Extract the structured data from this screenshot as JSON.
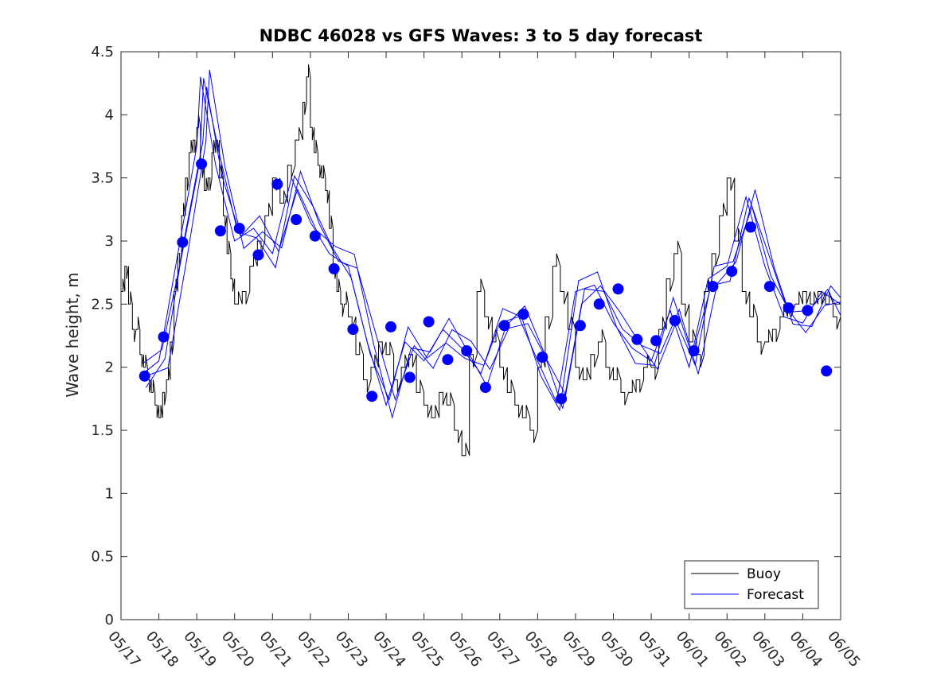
{
  "chart_data": {
    "type": "line",
    "title": "NDBC 46028 vs GFS Waves: 3 to 5 day forecast",
    "xlabel": "",
    "ylabel": "Wave height, m",
    "xlim": [
      "05/17",
      "06/05"
    ],
    "ylim": [
      0,
      4.5
    ],
    "grid": false,
    "legend_position": "bottom-right",
    "x_tick_labels": [
      "05/17",
      "05/18",
      "05/19",
      "05/20",
      "05/21",
      "05/22",
      "05/23",
      "05/24",
      "05/25",
      "05/26",
      "05/27",
      "05/28",
      "05/29",
      "05/30",
      "05/31",
      "06/01",
      "06/02",
      "06/03",
      "06/04",
      "06/05"
    ],
    "y_ticks": [
      0,
      0.5,
      1,
      1.5,
      2,
      2.5,
      3,
      3.5,
      4,
      4.5
    ],
    "y_tick_labels": [
      "0",
      "0.5",
      "1",
      "1.5",
      "2",
      "2.5",
      "3",
      "3.5",
      "4",
      "4.5"
    ],
    "colors": {
      "buoy": "#000000",
      "forecast": "#0000ff",
      "markers": "#0000ff"
    },
    "series": [
      {
        "name": "Buoy",
        "days": [
          0,
          0.1,
          0.2,
          0.3,
          0.4,
          0.5,
          0.6,
          0.7,
          0.8,
          0.9,
          1.0,
          1.1,
          1.2,
          1.3,
          1.4,
          1.5,
          1.6,
          1.7,
          1.8,
          1.9,
          2.0,
          2.1,
          2.2,
          2.3,
          2.4,
          2.5,
          2.6,
          2.7,
          2.8,
          2.9,
          3.0,
          3.2,
          3.4,
          3.6,
          3.8,
          4.0,
          4.2,
          4.4,
          4.6,
          4.8,
          4.9,
          5.0,
          5.1,
          5.2,
          5.3,
          5.4,
          5.5,
          5.6,
          5.7,
          5.8,
          5.9,
          6.0,
          6.2,
          6.4,
          6.6,
          6.8,
          7.0,
          7.2,
          7.4,
          7.6,
          7.8,
          8.0,
          8.2,
          8.4,
          8.6,
          8.8,
          9.0,
          9.2,
          9.4,
          9.6,
          9.8,
          10.0,
          10.2,
          10.4,
          10.6,
          10.8,
          11.0,
          11.2,
          11.4,
          11.6,
          11.8,
          12.0,
          12.2,
          12.4,
          12.6,
          12.8,
          13.0,
          13.2,
          13.4,
          13.6,
          13.8,
          14.0,
          14.2,
          14.4,
          14.6,
          14.8,
          15.0,
          15.2,
          15.4,
          15.6,
          15.8,
          16.0,
          16.2,
          16.4,
          16.6,
          16.8,
          17.0,
          17.2,
          17.4,
          17.6,
          17.8,
          18.0,
          18.2,
          18.4,
          18.6,
          18.8,
          19.0
        ],
        "values": [
          2.6,
          2.8,
          2.5,
          2.3,
          2.3,
          2.1,
          2.0,
          1.9,
          1.8,
          1.7,
          1.6,
          1.8,
          1.9,
          2.2,
          2.6,
          2.9,
          3.2,
          3.5,
          3.7,
          3.8,
          3.9,
          3.6,
          3.4,
          3.5,
          3.7,
          3.8,
          3.5,
          3.2,
          2.9,
          2.7,
          2.5,
          2.6,
          2.8,
          3.0,
          3.2,
          3.5,
          3.3,
          3.6,
          3.8,
          4.1,
          4.3,
          3.9,
          3.7,
          3.6,
          3.5,
          3.4,
          3.1,
          2.8,
          2.6,
          2.5,
          2.5,
          2.4,
          2.1,
          1.9,
          2.0,
          2.2,
          2.1,
          1.9,
          2.0,
          2.1,
          1.8,
          1.7,
          1.6,
          1.8,
          1.7,
          1.5,
          1.3,
          2.1,
          2.6,
          2.4,
          2.2,
          2.0,
          1.8,
          1.7,
          1.6,
          1.5,
          2.0,
          2.4,
          2.8,
          2.6,
          2.3,
          2.0,
          1.9,
          2.1,
          2.2,
          2.0,
          1.9,
          1.8,
          1.8,
          1.9,
          2.0,
          2.0,
          2.3,
          2.7,
          2.9,
          2.5,
          2.2,
          2.1,
          2.6,
          2.9,
          3.2,
          3.5,
          3.0,
          2.6,
          2.4,
          2.2,
          2.2,
          2.3,
          2.4,
          2.5,
          2.5,
          2.6,
          2.5,
          2.6,
          2.5,
          2.4,
          2.3
        ]
      },
      {
        "name": "Forecast",
        "days": [
          0.5,
          1.0,
          1.5,
          2.0,
          2.1,
          2.5,
          3.0,
          3.5,
          4.0,
          4.5,
          5.0,
          5.5,
          6.0,
          6.5,
          7.0,
          7.5,
          8.0,
          8.5,
          9.0,
          9.5,
          10.0,
          10.5,
          11.0,
          11.5,
          12.0,
          12.5,
          13.0,
          13.5,
          14.0,
          14.5,
          15.0,
          15.5,
          16.0,
          16.5,
          17.0,
          17.5,
          18.0,
          18.5,
          19.0
        ],
        "values": [
          1.93,
          2.05,
          2.9,
          3.75,
          4.3,
          3.6,
          3.0,
          3.1,
          2.9,
          3.5,
          3.15,
          2.9,
          2.8,
          2.2,
          1.7,
          2.2,
          2.05,
          2.3,
          2.15,
          1.95,
          2.35,
          2.4,
          2.05,
          1.72,
          2.6,
          2.65,
          2.35,
          2.15,
          2.05,
          2.45,
          2.0,
          2.7,
          2.8,
          3.35,
          2.8,
          2.4,
          2.35,
          2.6,
          2.5
        ]
      }
    ],
    "forecast_points": {
      "days": [
        0.625,
        1.125,
        1.625,
        2.125,
        2.625,
        3.125,
        3.625,
        4.125,
        4.625,
        5.125,
        5.625,
        6.125,
        6.625,
        7.125,
        7.625,
        8.125,
        8.625,
        9.125,
        9.625,
        10.125,
        10.625,
        11.125,
        11.625,
        12.125,
        12.625,
        13.125,
        13.625,
        14.125,
        14.625,
        15.125,
        15.625,
        16.125,
        16.625,
        17.125,
        17.625,
        18.125,
        18.625
      ],
      "values": [
        1.93,
        2.24,
        2.99,
        3.61,
        3.08,
        3.1,
        2.89,
        3.45,
        3.17,
        3.04,
        2.78,
        2.3,
        1.77,
        2.32,
        1.92,
        2.36,
        2.06,
        2.13,
        1.84,
        2.33,
        2.42,
        2.08,
        1.75,
        2.33,
        2.5,
        2.62,
        2.22,
        2.21,
        2.37,
        2.13,
        2.64,
        2.76,
        3.11,
        2.64,
        2.47,
        2.45,
        1.97
      ]
    }
  }
}
